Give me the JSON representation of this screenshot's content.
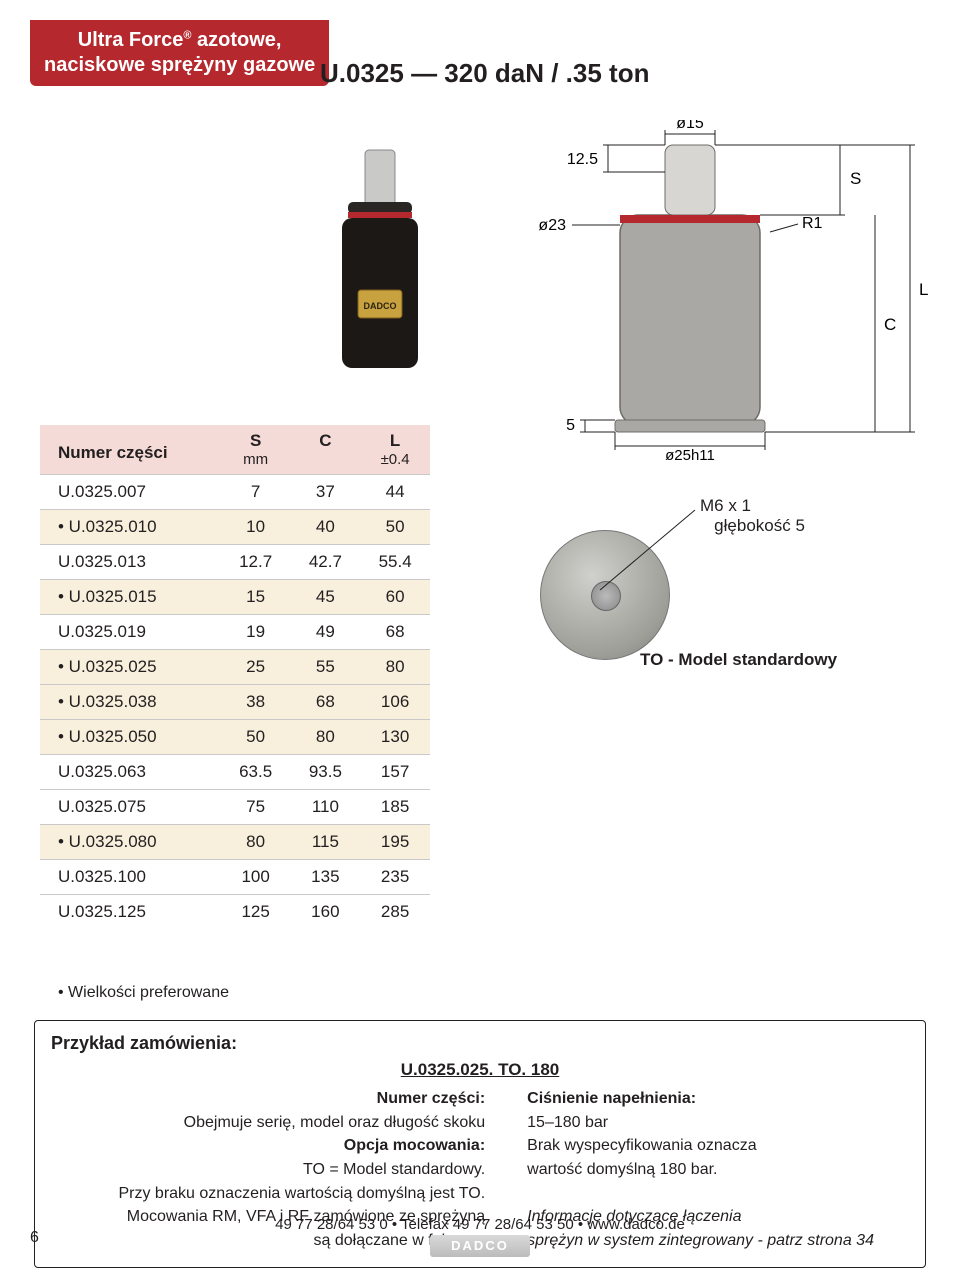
{
  "header": {
    "brand": "Ultra Force",
    "registered": "®",
    "line1_tail": " azotowe,",
    "line2": "naciskowe sprężyny gazowe"
  },
  "title": "U.0325 — 320 daN / .35 ton",
  "diagram": {
    "shaft_dia": "ø15",
    "shaft_stickout": "12.5",
    "body_dia": "ø23",
    "s_label": "S",
    "l_label": "L",
    "c_label": "C",
    "r1_label": "R1",
    "base_offset": "5",
    "base_dia": "ø25h11",
    "thread_label": "M6 x 1",
    "thread_depth": "głębokość 5",
    "model_label": "TO - Model standardowy",
    "colors": {
      "body_fill": "#a9a8a4",
      "body_stroke": "#6d6c68",
      "shaft_fill": "#d7d6d2",
      "ring": "#b4282e",
      "dim_line": "#231f20"
    }
  },
  "table": {
    "header": {
      "pn": "Numer części",
      "s": "S",
      "s_unit": "mm",
      "c": "C",
      "l": "L",
      "l_unit": "±0.4"
    },
    "rows": [
      {
        "pn": "U.0325.007",
        "s": "7",
        "c": "37",
        "l": "44",
        "pref": false
      },
      {
        "pn": "• U.0325.010",
        "s": "10",
        "c": "40",
        "l": "50",
        "pref": true
      },
      {
        "pn": "U.0325.013",
        "s": "12.7",
        "c": "42.7",
        "l": "55.4",
        "pref": false
      },
      {
        "pn": "• U.0325.015",
        "s": "15",
        "c": "45",
        "l": "60",
        "pref": true
      },
      {
        "pn": "U.0325.019",
        "s": "19",
        "c": "49",
        "l": "68",
        "pref": false
      },
      {
        "pn": "• U.0325.025",
        "s": "25",
        "c": "55",
        "l": "80",
        "pref": true
      },
      {
        "pn": "• U.0325.038",
        "s": "38",
        "c": "68",
        "l": "106",
        "pref": true
      },
      {
        "pn": "• U.0325.050",
        "s": "50",
        "c": "80",
        "l": "130",
        "pref": true
      },
      {
        "pn": "U.0325.063",
        "s": "63.5",
        "c": "93.5",
        "l": "157",
        "pref": false
      },
      {
        "pn": "U.0325.075",
        "s": "75",
        "c": "110",
        "l": "185",
        "pref": false
      },
      {
        "pn": "• U.0325.080",
        "s": "80",
        "c": "115",
        "l": "195",
        "pref": true
      },
      {
        "pn": "U.0325.100",
        "s": "100",
        "c": "135",
        "l": "235",
        "pref": false
      },
      {
        "pn": "U.0325.125",
        "s": "125",
        "c": "160",
        "l": "285",
        "pref": false
      }
    ],
    "pref_note": "• Wielkości preferowane",
    "row_bg_pref": "#f8f0dd",
    "header_bg": "#f4dbd7"
  },
  "example": {
    "title": "Przykład zamówienia:",
    "code": "U.0325.025. TO. 180",
    "left": {
      "l1b": "Numer części:",
      "l1": "Obejmuje serię, model oraz długość skoku",
      "l2b": "Opcja mocowania:",
      "l2": "TO = Model standardowy.",
      "l3": "Przy braku oznaczenia wartością domyślną jest TO.",
      "l4": "Mocowania RM, VFA i RF zamówione ze sprężyną",
      "l5": "są dołączane w fabryce."
    },
    "right": {
      "r1b": "Ciśnienie napełnienia:",
      "r1": "15–180 bar",
      "r2": "Brak wyspecyfikowania oznacza",
      "r3": "wartość domyślną 180 bar.",
      "r4i": "Informacje dotyczące łączenia",
      "r5i": "sprężyn w system zintegrowany - patrz strona 34"
    }
  },
  "footer": {
    "page": "6",
    "contact": "49 77 28/64 53 0 • Telefax 49 77 28/64 53 50 • www.dadco.de",
    "logo": "DADCO"
  }
}
